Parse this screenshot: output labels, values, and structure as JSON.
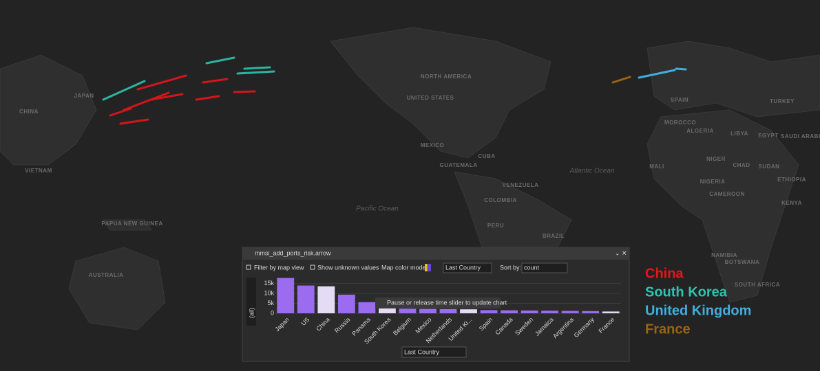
{
  "map": {
    "labels": [
      "NORTH AMERICA",
      "UNITED STATES",
      "MEXICO",
      "GUATEMALA",
      "CUBA",
      "VENEZUELA",
      "COLOMBIA",
      "PERU",
      "BRAZIL",
      "Atlantic Ocean",
      "Pacific Ocean",
      "CHINA",
      "JAPAN",
      "VIETNAM",
      "PAPUA NEW GUINEA",
      "AUSTRALIA",
      "SPAIN",
      "MOROCCO",
      "ALGERIA",
      "LIBYA",
      "EGYPT",
      "TURKEY",
      "SAUDI ARABIA",
      "MALI",
      "NIGER",
      "CHAD",
      "SUDAN",
      "NIGERIA",
      "ETHIOPIA",
      "CAMEROON",
      "KENYA",
      "NAMIBIA",
      "BOTSWANA",
      "SOUTH AFRICA"
    ]
  },
  "legend": [
    {
      "name": "China",
      "color": "#e8141b"
    },
    {
      "name": "South Korea",
      "color": "#2ec4b0"
    },
    {
      "name": "United Kingdom",
      "color": "#3fb0de"
    },
    {
      "name": "France",
      "color": "#9a6512"
    }
  ],
  "panel": {
    "title": "mmsi_add_ports_risk.arrow",
    "filter_by_map_view": "Filter by map view",
    "show_unknown_values": "Show unknown values",
    "map_color_mode": "Map color mode:",
    "color_mode_value": "Last Country",
    "sort_by": "Sort by:",
    "sort_value": "count",
    "tooltip": "Pause or release time slider to update chart",
    "side_label": "(all)",
    "bottom_select": "Last Country",
    "chart_data": {
      "type": "bar",
      "categories": [
        "Japan",
        "US",
        "China",
        "Russia",
        "Panama",
        "South Korea",
        "Belgium",
        "Mexico",
        "Netherlands",
        "United Ki...",
        "Spain",
        "Canada",
        "Sweden",
        "Jamaica",
        "Argentina",
        "Germany",
        "France"
      ],
      "values": [
        17800,
        14000,
        13600,
        9400,
        5600,
        2500,
        2300,
        2200,
        2100,
        2000,
        1600,
        1500,
        1400,
        1300,
        1200,
        1100,
        900
      ],
      "colors": [
        "#9b6cf0",
        "#9b6cf0",
        "#e4dcf5",
        "#9b6cf0",
        "#9b6cf0",
        "#e4dcf5",
        "#9b6cf0",
        "#9b6cf0",
        "#9b6cf0",
        "#e4dcf5",
        "#9b6cf0",
        "#9b6cf0",
        "#9b6cf0",
        "#9b6cf0",
        "#9b6cf0",
        "#9b6cf0",
        "#e4dcf5"
      ],
      "ylim": [
        0,
        18000
      ],
      "yticks": [
        0,
        {
          "value": 5000,
          "label": "5k"
        },
        {
          "value": 10000,
          "label": "10k"
        },
        {
          "value": 15000,
          "label": "15k"
        }
      ],
      "grid": true
    }
  }
}
